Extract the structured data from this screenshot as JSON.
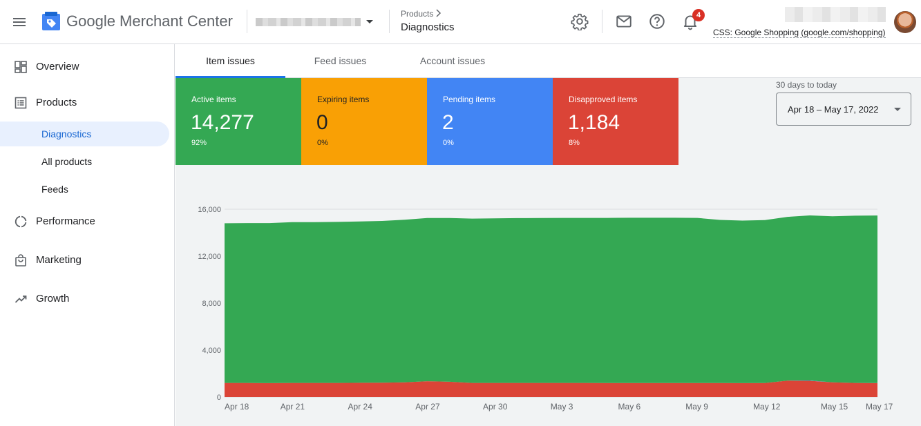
{
  "header": {
    "app_name": "Google Merchant Center",
    "breadcrumb_parent": "Products",
    "breadcrumb_current": "Diagnostics",
    "notification_count": "4",
    "css_label": "CSS: Google Shopping (google.com/shopping)",
    "icons": [
      "menu-icon",
      "settings-icon",
      "mail-icon",
      "help-icon",
      "bell-icon"
    ]
  },
  "sidebar": {
    "items": [
      {
        "label": "Overview",
        "icon": "dashboard-icon"
      },
      {
        "label": "Products",
        "icon": "list-icon"
      },
      {
        "label": "Performance",
        "icon": "donut-icon"
      },
      {
        "label": "Marketing",
        "icon": "shopping-bag-icon"
      },
      {
        "label": "Growth",
        "icon": "trending-up-icon"
      }
    ],
    "sub_items": [
      {
        "label": "Diagnostics",
        "active": true
      },
      {
        "label": "All products"
      },
      {
        "label": "Feeds"
      }
    ]
  },
  "tabs": [
    {
      "label": "Item issues",
      "active": true
    },
    {
      "label": "Feed issues"
    },
    {
      "label": "Account issues"
    }
  ],
  "cards": [
    {
      "label": "Active items",
      "value": "14,277",
      "percent": "92%",
      "color": "#34a853"
    },
    {
      "label": "Expiring items",
      "value": "0",
      "percent": "0%",
      "color": "#f9a005"
    },
    {
      "label": "Pending items",
      "value": "2",
      "percent": "0%",
      "color": "#4285f4"
    },
    {
      "label": "Disapproved items",
      "value": "1,184",
      "percent": "8%",
      "color": "#db4437"
    }
  ],
  "date_range": {
    "caption": "30 days to today",
    "value": "Apr 18 – May 17, 2022"
  },
  "chart_data": {
    "type": "area",
    "stacked": true,
    "x": [
      "Apr 18",
      "Apr 19",
      "Apr 20",
      "Apr 21",
      "Apr 22",
      "Apr 23",
      "Apr 24",
      "Apr 25",
      "Apr 26",
      "Apr 27",
      "Apr 28",
      "Apr 29",
      "Apr 30",
      "May 1",
      "May 2",
      "May 3",
      "May 4",
      "May 5",
      "May 6",
      "May 7",
      "May 8",
      "May 9",
      "May 10",
      "May 11",
      "May 12",
      "May 13",
      "May 14",
      "May 15",
      "May 16",
      "May 17"
    ],
    "x_tick_labels": [
      "Apr 18",
      "Apr 21",
      "Apr 24",
      "Apr 27",
      "Apr 30",
      "May 3",
      "May 6",
      "May 9",
      "May 12",
      "May 15",
      "May 17"
    ],
    "y_ticks": [
      "0",
      "4,000",
      "8,000",
      "12,000",
      "16,000"
    ],
    "ylim": [
      0,
      16000
    ],
    "grid": "horizontal",
    "series": [
      {
        "color": "#db4437",
        "values": [
          1200,
          1200,
          1180,
          1200,
          1200,
          1200,
          1210,
          1220,
          1250,
          1350,
          1300,
          1200,
          1200,
          1200,
          1200,
          1200,
          1200,
          1190,
          1190,
          1190,
          1190,
          1190,
          1190,
          1180,
          1190,
          1400,
          1380,
          1250,
          1200,
          1184
        ]
      },
      {
        "color": "#4285f4",
        "values": [
          0,
          0,
          0,
          0,
          0,
          0,
          0,
          0,
          0,
          0,
          0,
          0,
          0,
          0,
          0,
          0,
          0,
          0,
          0,
          0,
          0,
          0,
          0,
          0,
          0,
          0,
          30,
          0,
          0,
          2
        ]
      },
      {
        "color": "#f9a005",
        "values": [
          0,
          0,
          0,
          0,
          0,
          0,
          0,
          0,
          0,
          0,
          0,
          0,
          0,
          0,
          0,
          0,
          0,
          0,
          0,
          0,
          0,
          0,
          0,
          0,
          0,
          0,
          0,
          0,
          0,
          0
        ]
      },
      {
        "color": "#34a853",
        "values": [
          13600,
          13620,
          13640,
          13700,
          13700,
          13720,
          13750,
          13780,
          13850,
          13900,
          13950,
          14000,
          14020,
          14040,
          14050,
          14060,
          14060,
          14070,
          14080,
          14080,
          14080,
          14070,
          13900,
          13850,
          13880,
          13950,
          14060,
          14150,
          14250,
          14277
        ]
      }
    ]
  }
}
